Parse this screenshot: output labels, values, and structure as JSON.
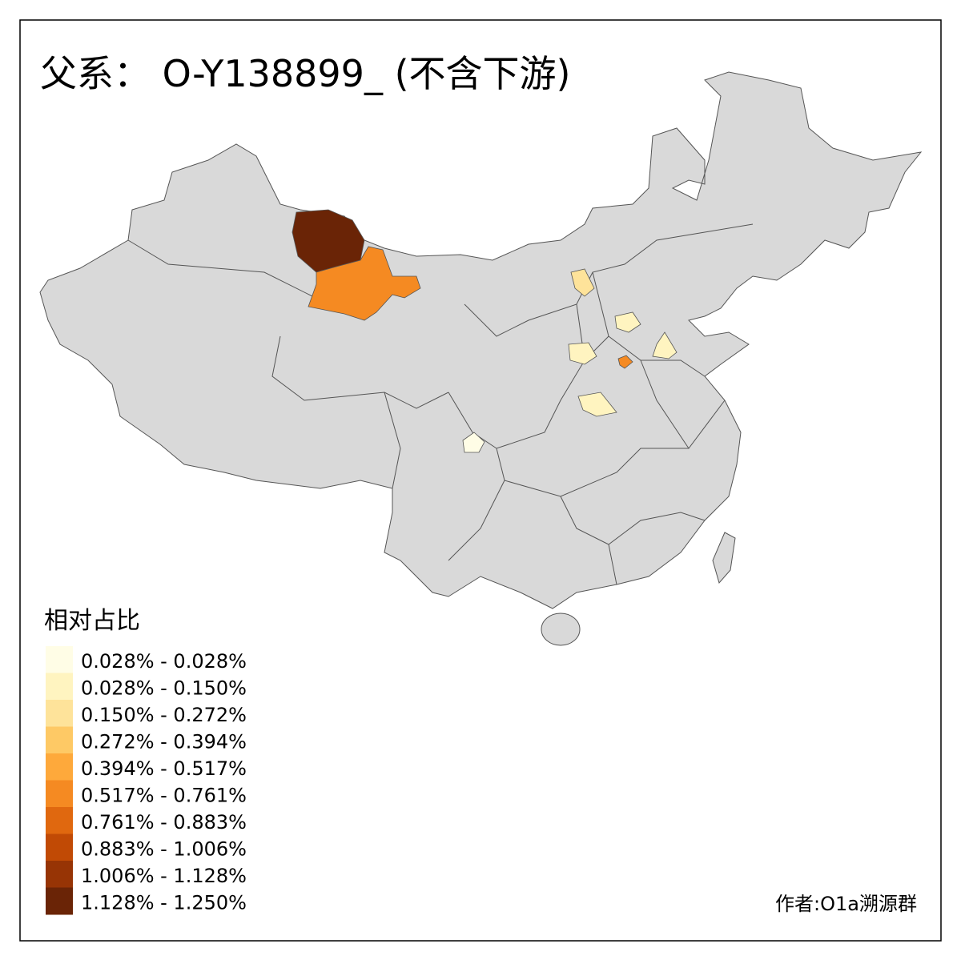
{
  "title": "父系： O-Y138899_ (不含下游)",
  "legend": {
    "title": "相对占比",
    "items": [
      {
        "label": "0.028% - 0.028%",
        "color": "#fffde6"
      },
      {
        "label": "0.028% - 0.150%",
        "color": "#fff4c0"
      },
      {
        "label": "0.150% - 0.272%",
        "color": "#fee39a"
      },
      {
        "label": "0.272% - 0.394%",
        "color": "#fec965"
      },
      {
        "label": "0.394% - 0.517%",
        "color": "#fea93b"
      },
      {
        "label": "0.517% - 0.761%",
        "color": "#f58a22"
      },
      {
        "label": "0.761% - 0.883%",
        "color": "#e0680f"
      },
      {
        "label": "0.883% - 1.006%",
        "color": "#c14a05"
      },
      {
        "label": "1.006% - 1.128%",
        "color": "#973405"
      },
      {
        "label": "1.128% - 1.250%",
        "color": "#6a2406"
      }
    ]
  },
  "credit": "作者:O1a溯源群"
}
